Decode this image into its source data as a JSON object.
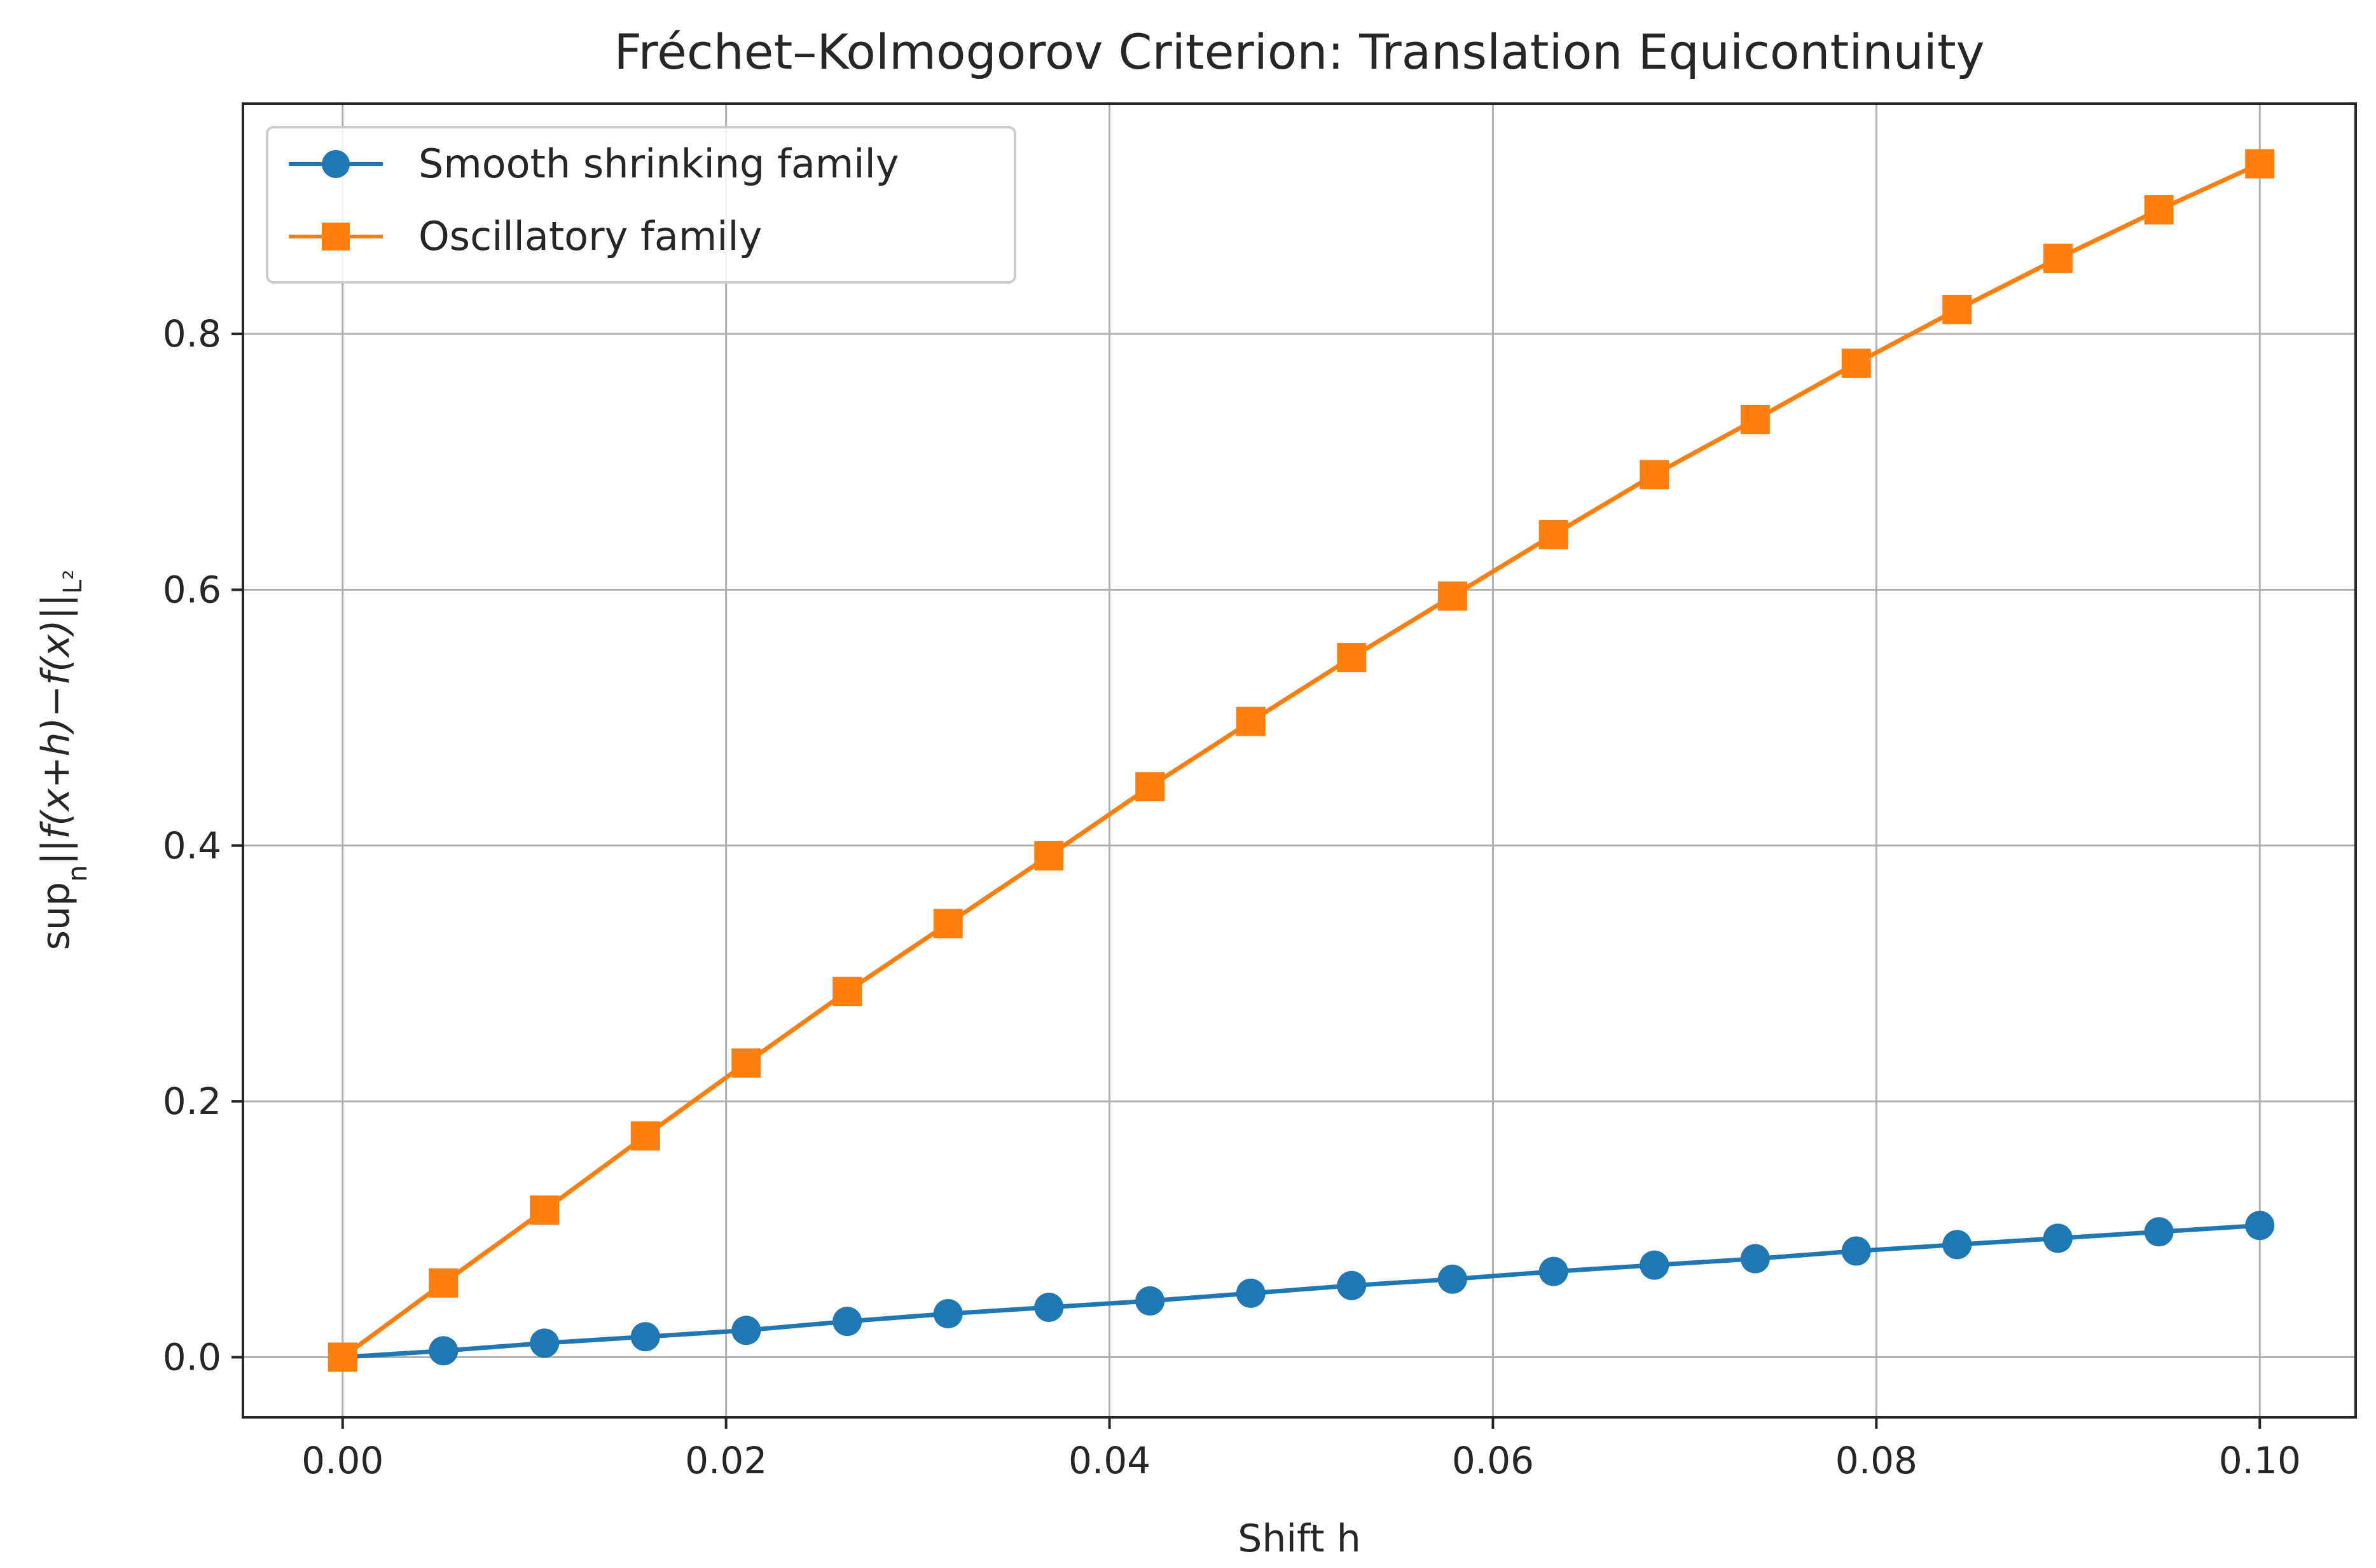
{
  "chart_data": {
    "type": "line",
    "title": "Fréchet–Kolmogorov Criterion: Translation Equicontinuity",
    "xlabel": "Shift h",
    "ylabel": {
      "prefix": "sup",
      "subscript": "n",
      "body": "||f(x+h)−f(x)||",
      "norm_subscript": "L²"
    },
    "xlim": [
      -0.0052,
      0.105
    ],
    "ylim": [
      -0.047,
      0.98
    ],
    "x_ticks": [
      "0.00",
      "0.02",
      "0.04",
      "0.06",
      "0.08",
      "0.10"
    ],
    "x_tick_values": [
      0.0,
      0.02,
      0.04,
      0.06,
      0.08,
      0.1
    ],
    "y_ticks": [
      "0.0",
      "0.2",
      "0.4",
      "0.6",
      "0.8"
    ],
    "y_tick_values": [
      0.0,
      0.2,
      0.4,
      0.6,
      0.8
    ],
    "grid": true,
    "legend_position": "top-left",
    "x": [
      0.0,
      0.00526,
      0.01053,
      0.01579,
      0.02105,
      0.02632,
      0.03158,
      0.03684,
      0.04211,
      0.04737,
      0.05263,
      0.05789,
      0.06316,
      0.06842,
      0.07368,
      0.07895,
      0.08421,
      0.08947,
      0.09474,
      0.1
    ],
    "series": [
      {
        "name": "Smooth shrinking family",
        "color": "#1f77b4",
        "marker": "circle",
        "values": [
          0.0,
          0.005,
          0.011,
          0.016,
          0.021,
          0.028,
          0.034,
          0.039,
          0.044,
          0.05,
          0.056,
          0.061,
          0.067,
          0.072,
          0.077,
          0.083,
          0.088,
          0.093,
          0.098,
          0.103
        ]
      },
      {
        "name": "Oscillatory family",
        "color": "#ff7f0e",
        "marker": "square",
        "values": [
          0.0,
          0.058,
          0.115,
          0.173,
          0.23,
          0.286,
          0.339,
          0.392,
          0.446,
          0.497,
          0.547,
          0.595,
          0.643,
          0.69,
          0.733,
          0.777,
          0.819,
          0.859,
          0.897,
          0.933
        ]
      }
    ]
  }
}
